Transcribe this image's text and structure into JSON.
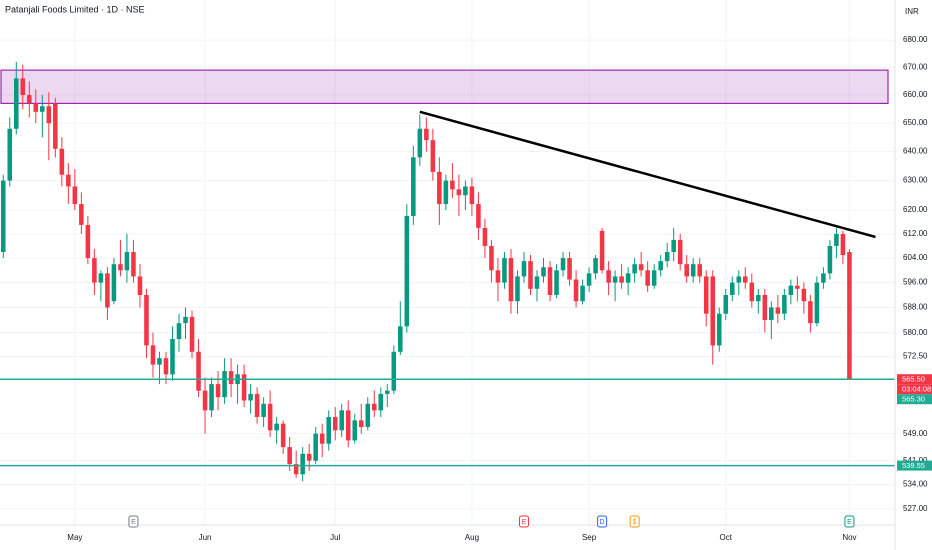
{
  "chart_data": {
    "type": "candlestick",
    "title": "Patanjali Foods Limited · 1D · NSE",
    "currency": "INR",
    "log_scale": true,
    "ylim": [
      522.4,
      695
    ],
    "yticks": [
      {
        "value": 680,
        "label": "680.00"
      },
      {
        "value": 670,
        "label": "670.00"
      },
      {
        "value": 660,
        "label": "660.00"
      },
      {
        "value": 650,
        "label": "650.00"
      },
      {
        "value": 640,
        "label": "640.00"
      },
      {
        "value": 630,
        "label": "630.00"
      },
      {
        "value": 620,
        "label": "620.00"
      },
      {
        "value": 612,
        "label": "612.00"
      },
      {
        "value": 604,
        "label": "604.00"
      },
      {
        "value": 596,
        "label": "596.00"
      },
      {
        "value": 588,
        "label": "588.00"
      },
      {
        "value": 580,
        "label": "580.00"
      },
      {
        "value": 572.5,
        "label": "572.50"
      },
      {
        "value": 549,
        "label": "549.00"
      },
      {
        "value": 541,
        "label": "541.00"
      },
      {
        "value": 534,
        "label": "534.00"
      },
      {
        "value": 527,
        "label": "527.00"
      }
    ],
    "xlim": [
      -0.5,
      137
    ],
    "xticks": [
      {
        "value": 11,
        "label": "May"
      },
      {
        "value": 31,
        "label": "Jun"
      },
      {
        "value": 51,
        "label": "Jul"
      },
      {
        "value": 72,
        "label": "Aug"
      },
      {
        "value": 90,
        "label": "Sep"
      },
      {
        "value": 111,
        "label": "Oct"
      },
      {
        "value": 130,
        "label": "Nov"
      }
    ],
    "up_color": "#089981",
    "down_color": "#f23645",
    "ohlc": [
      [
        606,
        632,
        604,
        630
      ],
      [
        630,
        652,
        628,
        648
      ],
      [
        648,
        672,
        646,
        666
      ],
      [
        666,
        671,
        655,
        660
      ],
      [
        660,
        665,
        652,
        657
      ],
      [
        657,
        662,
        650,
        654
      ],
      [
        654,
        660,
        645,
        656
      ],
      [
        656,
        661,
        637,
        650
      ],
      [
        657,
        659,
        638,
        641
      ],
      [
        641,
        645,
        628,
        632
      ],
      [
        632,
        636,
        622,
        628
      ],
      [
        628,
        634,
        620,
        622
      ],
      [
        622,
        626,
        612,
        615
      ],
      [
        615,
        618,
        602,
        604
      ],
      [
        604,
        607,
        592,
        596
      ],
      [
        596,
        600,
        590,
        599
      ],
      [
        599,
        601,
        584,
        588
      ],
      [
        590,
        604,
        589,
        602
      ],
      [
        602,
        610,
        598,
        600
      ],
      [
        600,
        612,
        596,
        606
      ],
      [
        606,
        610,
        596,
        598
      ],
      [
        598,
        602,
        588,
        592
      ],
      [
        592,
        594,
        572,
        576
      ],
      [
        576,
        580,
        566,
        570
      ],
      [
        570,
        574,
        564,
        572
      ],
      [
        572,
        574,
        564,
        567
      ],
      [
        567,
        582,
        565,
        578
      ],
      [
        578,
        586,
        574,
        583
      ],
      [
        583,
        588,
        578,
        585
      ],
      [
        585,
        587,
        572,
        574
      ],
      [
        574,
        578,
        560,
        562
      ],
      [
        562,
        566,
        549,
        556
      ],
      [
        556,
        566,
        554,
        564
      ],
      [
        564,
        568,
        556,
        560
      ],
      [
        560,
        572,
        558,
        568
      ],
      [
        568,
        572,
        560,
        564
      ],
      [
        564,
        570,
        558,
        567
      ],
      [
        567,
        570,
        557,
        559
      ],
      [
        559,
        564,
        555,
        561
      ],
      [
        561,
        563,
        552,
        554
      ],
      [
        554,
        560,
        551,
        558
      ],
      [
        558,
        562,
        548,
        550
      ],
      [
        550,
        554,
        546,
        552
      ],
      [
        552,
        553,
        543,
        545
      ],
      [
        545,
        548,
        538,
        540
      ],
      [
        540,
        544,
        536,
        537
      ],
      [
        537,
        545,
        535,
        543
      ],
      [
        543,
        546,
        538,
        541
      ],
      [
        541,
        551,
        540,
        549
      ],
      [
        549,
        552,
        542,
        546
      ],
      [
        546,
        556,
        544,
        554
      ],
      [
        554,
        557,
        547,
        550
      ],
      [
        550,
        558,
        548,
        556
      ],
      [
        556,
        559,
        545,
        547
      ],
      [
        547,
        555,
        546,
        553
      ],
      [
        553,
        558,
        549,
        551
      ],
      [
        551,
        560,
        550,
        558
      ],
      [
        558,
        562,
        554,
        556
      ],
      [
        556,
        563,
        554,
        561
      ],
      [
        561,
        564,
        557,
        562
      ],
      [
        562,
        576,
        561,
        574
      ],
      [
        574,
        590,
        573,
        582
      ],
      [
        582,
        622,
        580,
        618
      ],
      [
        618,
        642,
        615,
        638
      ],
      [
        638,
        653,
        635,
        648
      ],
      [
        648,
        652,
        640,
        644
      ],
      [
        644,
        648,
        630,
        633
      ],
      [
        633,
        638,
        615,
        622
      ],
      [
        622,
        632,
        620,
        630
      ],
      [
        630,
        636,
        624,
        627
      ],
      [
        627,
        632,
        618,
        625
      ],
      [
        625,
        630,
        620,
        628
      ],
      [
        628,
        631,
        618,
        622
      ],
      [
        622,
        626,
        610,
        614
      ],
      [
        614,
        617,
        604,
        608
      ],
      [
        608,
        610,
        596,
        600
      ],
      [
        600,
        604,
        590,
        596
      ],
      [
        596,
        606,
        594,
        604
      ],
      [
        604,
        607,
        586,
        590
      ],
      [
        590,
        600,
        586,
        598
      ],
      [
        598,
        606,
        596,
        603
      ],
      [
        603,
        605,
        592,
        594
      ],
      [
        594,
        600,
        590,
        598
      ],
      [
        598,
        604,
        596,
        601
      ],
      [
        601,
        603,
        590,
        592
      ],
      [
        592,
        602,
        591,
        600
      ],
      [
        600,
        606,
        598,
        604
      ],
      [
        604,
        606,
        595,
        597
      ],
      [
        597,
        600,
        588,
        590
      ],
      [
        590,
        597,
        589,
        595
      ],
      [
        595,
        601,
        593,
        599
      ],
      [
        599,
        605,
        597,
        604
      ],
      [
        613,
        614,
        599,
        600
      ],
      [
        600,
        603,
        592,
        596
      ],
      [
        596,
        600,
        590,
        598
      ],
      [
        598,
        602,
        594,
        596
      ],
      [
        596,
        601,
        592,
        599
      ],
      [
        599,
        604,
        596,
        602
      ],
      [
        602,
        606,
        598,
        600
      ],
      [
        600,
        603,
        593,
        595
      ],
      [
        595,
        602,
        594,
        600
      ],
      [
        600,
        605,
        598,
        603
      ],
      [
        603,
        609,
        601,
        606
      ],
      [
        606,
        614,
        603,
        610
      ],
      [
        610,
        612,
        600,
        602
      ],
      [
        602,
        605,
        596,
        598
      ],
      [
        598,
        604,
        596,
        602
      ],
      [
        602,
        604,
        596,
        598
      ],
      [
        598,
        600,
        582,
        586
      ],
      [
        598,
        600,
        570,
        576
      ],
      [
        576,
        588,
        574,
        586
      ],
      [
        586,
        594,
        584,
        592
      ],
      [
        592,
        598,
        590,
        596
      ],
      [
        596,
        600,
        592,
        598
      ],
      [
        598,
        601,
        594,
        596
      ],
      [
        596,
        599,
        588,
        590
      ],
      [
        590,
        594,
        586,
        592
      ],
      [
        592,
        594,
        580,
        584
      ],
      [
        584,
        590,
        578,
        588
      ],
      [
        588,
        592,
        583,
        586
      ],
      [
        586,
        594,
        584,
        592
      ],
      [
        592,
        597,
        589,
        595
      ],
      [
        595,
        598,
        590,
        594
      ],
      [
        594,
        596,
        586,
        590
      ],
      [
        590,
        592,
        580,
        583
      ],
      [
        583,
        598,
        582,
        596
      ],
      [
        596,
        601,
        594,
        599
      ],
      [
        599,
        610,
        597,
        608
      ],
      [
        608,
        614,
        604,
        612
      ],
      [
        612,
        613,
        602,
        605
      ],
      [
        606,
        607,
        565.5,
        565.5
      ]
    ],
    "zone": {
      "low": 657,
      "high": 669,
      "color": "#9c27b0"
    },
    "trendline": {
      "x": [
        64,
        134
      ],
      "y": [
        654,
        611
      ],
      "color": "#000000"
    },
    "levels": [
      {
        "value": 565.5,
        "color": "#22ab94"
      },
      {
        "value": 539.55,
        "color": "#22ab94"
      }
    ],
    "price_labels": [
      {
        "value": 565.5,
        "label": "565.50",
        "color": "#f23645"
      },
      {
        "value": 565.5,
        "label": "03:04:08",
        "color": "#f23645"
      },
      {
        "value": 565.3,
        "label": "565.30",
        "color": "#22ab94"
      },
      {
        "value": 539.55,
        "label": "539.55",
        "color": "#22ab94"
      }
    ],
    "events": [
      {
        "x": 20,
        "label": "E",
        "color": "#787b86"
      },
      {
        "x": 80,
        "label": "E",
        "color": "#f23645"
      },
      {
        "x": 92,
        "label": "D",
        "color": "#2962ff"
      },
      {
        "x": 97,
        "label": "$",
        "color": "#ff9800"
      },
      {
        "x": 130,
        "label": "E",
        "color": "#089981"
      }
    ]
  }
}
